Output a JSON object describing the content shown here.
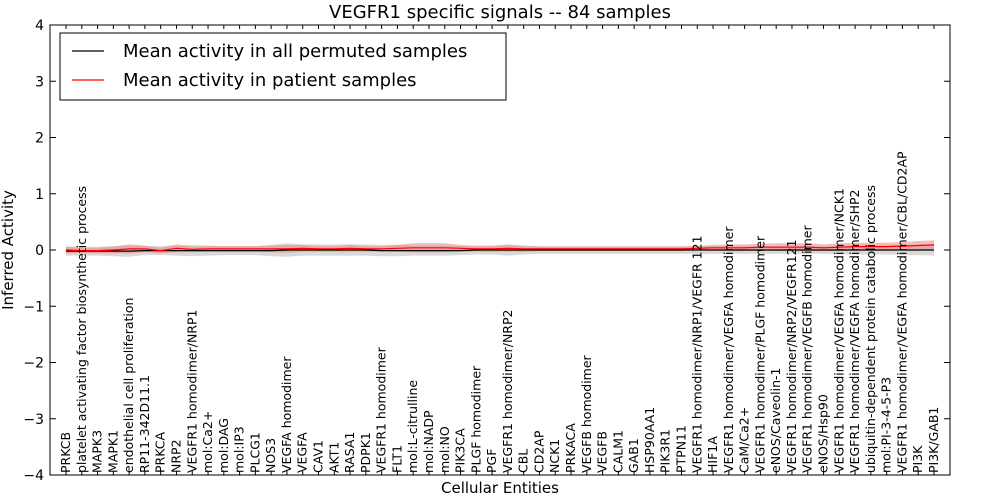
{
  "chart_data": {
    "type": "line",
    "title": "VEGFR1 specific signals -- 84 samples",
    "xlabel": "Cellular Entities",
    "ylabel": "Inferred Activity",
    "ylim": [
      -4,
      4
    ],
    "yticks": [
      "−4",
      "−3",
      "−2",
      "−1",
      "0",
      "1",
      "2",
      "3",
      "4"
    ],
    "grid": false,
    "legend_position": "top-left",
    "categories": [
      "PRKCB",
      "platelet activating factor biosynthetic process",
      "MAPK3",
      "MAPK1",
      "endothelial cell proliferation",
      "RP11-342D11.1",
      "PRKCA",
      "NRP2",
      "VEGFR1 homodimer/NRP1",
      "mol:Ca2+",
      "mol:DAG",
      "mol:IP3",
      "PLCG1",
      "NOS3",
      "VEGFA homodimer",
      "VEGFA",
      "CAV1",
      "AKT1",
      "RASA1",
      "PDPK1",
      "VEGFR1 homodimer",
      "FLT1",
      "mol:L-citrulline",
      "mol:NADP",
      "mol:NO",
      "PIK3CA",
      "PLGF homodimer",
      "PGF",
      "VEGFR1 homodimer/NRP2",
      "CBL",
      "CD2AP",
      "NCK1",
      "PRKACA",
      "VEGFB homodimer",
      "VEGFB",
      "CALM1",
      "GAB1",
      "HSP90AA1",
      "PIK3R1",
      "PTPN11",
      "VEGFR1 homodimer/NRP1/VEGFR 121",
      "HIF1A",
      "VEGFR1 homodimer/VEGFA homodimer",
      "CaM/Ca2+",
      "VEGFR1 homodimer/PLGF homodimer",
      "eNOS/Caveolin-1",
      "VEGFR1 homodimer/NRP2/VEGFR121",
      "VEGFR1 homodimer/VEGFB homodimer",
      "eNOS/Hsp90",
      "VEGFR1 homodimer/VEGFA homodimer/NCK1",
      "VEGFR1 homodimer/VEGFA homodimer/SHP2",
      "ubiquitin-dependent protein catabolic process",
      "mol:PI-3-4-5-P3",
      "VEGFR1 homodimer/VEGFA homodimer/CBL/CD2AP",
      "PI3K",
      "PI3K/GAB1"
    ],
    "series": [
      {
        "name": "Mean activity in all permuted samples",
        "color": "#000000",
        "band_color": "#aaaaaa",
        "values": [
          -0.02,
          -0.02,
          -0.02,
          -0.02,
          -0.02,
          -0.01,
          -0.01,
          -0.01,
          -0.01,
          -0.01,
          -0.01,
          -0.01,
          -0.01,
          -0.01,
          0.0,
          0.0,
          0.0,
          0.0,
          0.0,
          0.0,
          -0.01,
          -0.01,
          -0.01,
          -0.01,
          -0.01,
          -0.01,
          0.0,
          0.0,
          0.0,
          0.0,
          0.0,
          0.0,
          0.0,
          0.0,
          0.0,
          0.0,
          0.0,
          0.0,
          0.0,
          0.0,
          0.0,
          0.0,
          0.0,
          0.0,
          0.0,
          0.0,
          0.0,
          0.0,
          0.0,
          0.0,
          0.0,
          0.0,
          0.0,
          0.0,
          0.0,
          0.0
        ],
        "spread": [
          0.08,
          0.08,
          0.08,
          0.09,
          0.1,
          0.08,
          0.08,
          0.09,
          0.1,
          0.09,
          0.08,
          0.08,
          0.08,
          0.1,
          0.12,
          0.1,
          0.1,
          0.1,
          0.1,
          0.1,
          0.1,
          0.1,
          0.09,
          0.09,
          0.09,
          0.08,
          0.08,
          0.08,
          0.1,
          0.08,
          0.07,
          0.07,
          0.07,
          0.07,
          0.07,
          0.07,
          0.07,
          0.07,
          0.07,
          0.07,
          0.07,
          0.07,
          0.07,
          0.07,
          0.07,
          0.07,
          0.07,
          0.07,
          0.07,
          0.08,
          0.08,
          0.08,
          0.08,
          0.09,
          0.09,
          0.1
        ]
      },
      {
        "name": "Mean activity in patient samples",
        "color": "#ff0000",
        "band_color": "#f08080",
        "values": [
          0.0,
          -0.01,
          -0.01,
          0.0,
          0.02,
          0.02,
          -0.01,
          0.03,
          0.01,
          0.02,
          0.02,
          0.02,
          0.02,
          0.02,
          0.02,
          0.03,
          0.02,
          0.02,
          0.03,
          0.02,
          0.02,
          0.03,
          0.04,
          0.04,
          0.04,
          0.03,
          0.02,
          0.02,
          0.03,
          0.02,
          0.02,
          0.02,
          0.02,
          0.02,
          0.02,
          0.02,
          0.02,
          0.02,
          0.02,
          0.02,
          0.03,
          0.04,
          0.04,
          0.04,
          0.05,
          0.05,
          0.05,
          0.05,
          0.04,
          0.05,
          0.06,
          0.06,
          0.06,
          0.07,
          0.08,
          0.09
        ],
        "spread": [
          0.06,
          0.05,
          0.05,
          0.06,
          0.08,
          0.06,
          0.05,
          0.07,
          0.05,
          0.05,
          0.05,
          0.05,
          0.05,
          0.06,
          0.07,
          0.06,
          0.05,
          0.05,
          0.06,
          0.05,
          0.05,
          0.06,
          0.08,
          0.08,
          0.08,
          0.06,
          0.05,
          0.05,
          0.06,
          0.05,
          0.04,
          0.04,
          0.04,
          0.04,
          0.04,
          0.04,
          0.04,
          0.04,
          0.04,
          0.04,
          0.04,
          0.05,
          0.06,
          0.06,
          0.06,
          0.07,
          0.07,
          0.07,
          0.06,
          0.07,
          0.07,
          0.07,
          0.07,
          0.07,
          0.08,
          0.08
        ]
      }
    ]
  }
}
